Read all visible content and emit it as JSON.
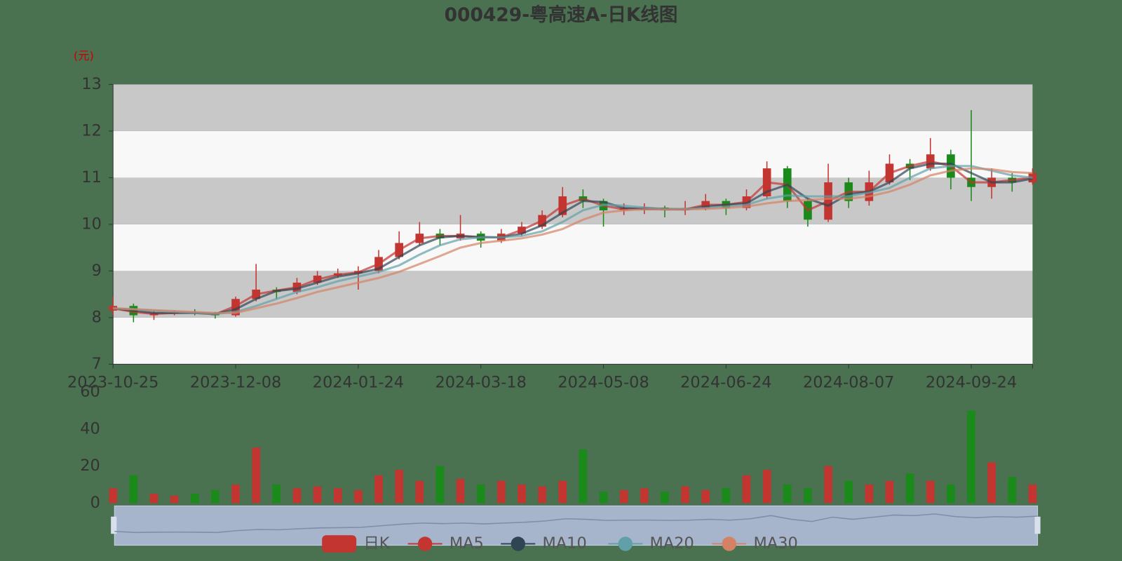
{
  "chart_data": {
    "type": "candlestick",
    "title": "000429-粤高速A-日K线图",
    "y_label": "(元)",
    "categories": [
      "2023-10-25",
      null,
      null,
      null,
      null,
      null,
      "2023-12-08",
      null,
      null,
      null,
      null,
      null,
      "2024-01-24",
      null,
      null,
      null,
      null,
      null,
      "2024-03-18",
      null,
      null,
      null,
      null,
      null,
      "2024-05-08",
      null,
      null,
      null,
      null,
      null,
      "2024-06-24",
      null,
      null,
      null,
      null,
      null,
      "2024-08-07",
      null,
      null,
      null,
      null,
      null,
      "2024-09-24",
      null,
      null,
      null
    ],
    "ylim": [
      7,
      13
    ],
    "yticks": [
      7,
      8,
      9,
      10,
      11,
      12,
      13
    ],
    "y2lim": [
      0,
      60
    ],
    "y2ticks": [
      0,
      20,
      40,
      60
    ],
    "split_area": true,
    "up_color": "#c23531",
    "down_color": "#1a8a1a",
    "series": [
      {
        "name": "日K",
        "color": "#c23531",
        "values": [
          [
            8.15,
            8.25,
            8.05,
            8.45
          ],
          [
            8.25,
            8.05,
            7.9,
            8.3
          ],
          [
            8.05,
            8.1,
            7.95,
            8.15
          ],
          [
            8.08,
            8.12,
            8.05,
            8.15
          ],
          [
            8.12,
            8.1,
            8.05,
            8.18
          ],
          [
            8.1,
            8.05,
            7.98,
            8.12
          ],
          [
            8.05,
            8.4,
            8.02,
            8.45
          ],
          [
            8.4,
            8.6,
            8.35,
            9.15
          ],
          [
            8.6,
            8.55,
            8.4,
            8.65
          ],
          [
            8.55,
            8.75,
            8.5,
            8.85
          ],
          [
            8.75,
            8.9,
            8.7,
            9.0
          ],
          [
            8.9,
            8.95,
            8.85,
            9.05
          ],
          [
            8.95,
            9.0,
            8.6,
            9.1
          ],
          [
            9.0,
            9.3,
            8.95,
            9.45
          ],
          [
            9.3,
            9.6,
            9.25,
            9.85
          ],
          [
            9.6,
            9.8,
            9.55,
            10.05
          ],
          [
            9.8,
            9.7,
            9.55,
            9.9
          ],
          [
            9.7,
            9.8,
            9.65,
            10.2
          ],
          [
            9.8,
            9.65,
            9.5,
            9.85
          ],
          [
            9.65,
            9.8,
            9.6,
            9.9
          ],
          [
            9.8,
            9.95,
            9.75,
            10.05
          ],
          [
            9.95,
            10.2,
            9.9,
            10.3
          ],
          [
            10.2,
            10.6,
            10.15,
            10.8
          ],
          [
            10.6,
            10.5,
            10.35,
            10.75
          ],
          [
            10.5,
            10.3,
            9.95,
            10.55
          ],
          [
            10.3,
            10.35,
            10.2,
            10.45
          ],
          [
            10.32,
            10.36,
            10.22,
            10.45
          ],
          [
            10.36,
            10.3,
            10.15,
            10.4
          ],
          [
            10.3,
            10.35,
            10.2,
            10.5
          ],
          [
            10.35,
            10.5,
            10.3,
            10.65
          ],
          [
            10.5,
            10.35,
            10.2,
            10.55
          ],
          [
            10.35,
            10.6,
            10.3,
            10.75
          ],
          [
            10.6,
            11.2,
            10.55,
            11.35
          ],
          [
            11.2,
            10.5,
            10.35,
            11.25
          ],
          [
            10.5,
            10.1,
            9.95,
            10.55
          ],
          [
            10.1,
            10.9,
            10.05,
            11.3
          ],
          [
            10.9,
            10.5,
            10.35,
            11.0
          ],
          [
            10.5,
            10.9,
            10.4,
            11.15
          ],
          [
            10.9,
            11.3,
            10.85,
            11.5
          ],
          [
            11.3,
            11.2,
            10.95,
            11.4
          ],
          [
            11.2,
            11.5,
            11.15,
            11.85
          ],
          [
            11.5,
            11.0,
            10.75,
            11.6
          ],
          [
            11.0,
            10.8,
            10.5,
            12.45
          ],
          [
            10.8,
            11.0,
            10.55,
            11.2
          ],
          [
            11.0,
            10.9,
            10.7,
            11.1
          ],
          [
            10.9,
            11.1,
            10.85,
            11.2
          ]
        ]
      },
      {
        "name": "MA5",
        "color": "#c23531",
        "values": [
          8.2,
          8.12,
          8.08,
          8.1,
          8.1,
          8.07,
          8.25,
          8.5,
          8.58,
          8.65,
          8.82,
          8.92,
          8.97,
          9.15,
          9.45,
          9.7,
          9.75,
          9.75,
          9.72,
          9.72,
          9.88,
          10.08,
          10.4,
          10.55,
          10.4,
          10.32,
          10.35,
          10.32,
          10.32,
          10.42,
          10.42,
          10.48,
          10.9,
          10.85,
          10.3,
          10.5,
          10.7,
          10.7,
          11.1,
          11.25,
          11.35,
          11.25,
          10.9,
          10.9,
          10.95,
          11.0
        ]
      },
      {
        "name": "MA10",
        "color": "#2f4554",
        "values": [
          8.2,
          8.15,
          8.1,
          8.1,
          8.1,
          8.08,
          8.18,
          8.4,
          8.57,
          8.62,
          8.75,
          8.88,
          8.95,
          9.05,
          9.3,
          9.55,
          9.72,
          9.75,
          9.73,
          9.72,
          9.8,
          9.98,
          10.25,
          10.5,
          10.48,
          10.35,
          10.33,
          10.33,
          10.32,
          10.38,
          10.42,
          10.45,
          10.7,
          10.85,
          10.55,
          10.4,
          10.65,
          10.7,
          10.9,
          11.2,
          11.3,
          11.3,
          11.1,
          10.9,
          10.9,
          10.98
        ]
      },
      {
        "name": "MA20",
        "color": "#61a0a8",
        "values": [
          8.2,
          8.18,
          8.15,
          8.12,
          8.1,
          8.08,
          8.12,
          8.25,
          8.4,
          8.55,
          8.65,
          8.78,
          8.88,
          8.98,
          9.12,
          9.35,
          9.55,
          9.68,
          9.72,
          9.72,
          9.75,
          9.85,
          10.05,
          10.3,
          10.42,
          10.4,
          10.36,
          10.33,
          10.33,
          10.35,
          10.38,
          10.42,
          10.55,
          10.62,
          10.6,
          10.6,
          10.6,
          10.68,
          10.78,
          11.0,
          11.2,
          11.25,
          11.25,
          11.15,
          11.05,
          11.0
        ]
      },
      {
        "name": "MA30",
        "color": "#d48265",
        "values": [
          8.2,
          8.18,
          8.16,
          8.14,
          8.12,
          8.1,
          8.1,
          8.2,
          8.3,
          8.42,
          8.55,
          8.65,
          8.75,
          8.85,
          8.98,
          9.15,
          9.32,
          9.5,
          9.6,
          9.65,
          9.7,
          9.78,
          9.9,
          10.1,
          10.25,
          10.3,
          10.32,
          10.32,
          10.32,
          10.33,
          10.35,
          10.38,
          10.45,
          10.5,
          10.52,
          10.55,
          10.55,
          10.6,
          10.7,
          10.85,
          11.05,
          11.15,
          11.2,
          11.18,
          11.12,
          11.1
        ]
      }
    ],
    "volume": {
      "axis": "y2",
      "values": [
        8,
        15,
        5,
        4,
        5,
        7,
        10,
        30,
        10,
        8,
        9,
        8,
        7,
        15,
        18,
        12,
        20,
        13,
        10,
        12,
        10,
        9,
        12,
        29,
        6,
        7,
        8,
        6,
        9,
        7,
        8,
        15,
        18,
        10,
        8,
        20,
        12,
        10,
        12,
        16,
        12,
        10,
        50,
        22,
        14,
        10
      ]
    }
  }
}
